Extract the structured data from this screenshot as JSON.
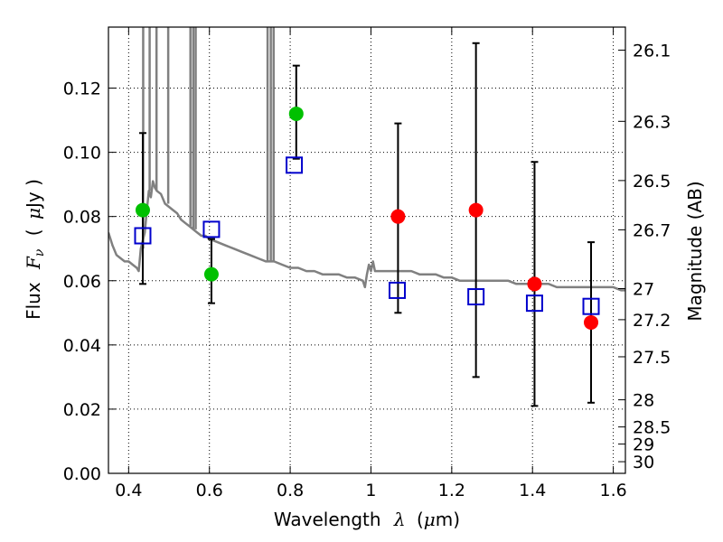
{
  "chart_data": {
    "type": "scatter",
    "xlabel_text": "Wavelength",
    "xlabel_symbol": "λ",
    "xlabel_unit_open": "(",
    "xlabel_unit_mu": "μ",
    "xlabel_unit_rest": "m)",
    "ylabel_text": "Flux",
    "ylabel_symbol": "F",
    "ylabel_symbol_sub": "ν",
    "ylabel_unit_open": "(",
    "ylabel_unit_mu": "μ",
    "ylabel_unit_rest": "Jy )",
    "y2label": "Magnitude (AB)",
    "xlim": [
      0.35,
      1.63
    ],
    "ylim": [
      0.0,
      0.139
    ],
    "x_ticks": [
      0.4,
      0.6,
      0.8,
      1.0,
      1.2,
      1.4,
      1.6
    ],
    "x_tick_labels": [
      "0.4",
      "0.6",
      "0.8",
      "1",
      "1.2",
      "1.4",
      "1.6"
    ],
    "y_ticks": [
      0.0,
      0.02,
      0.04,
      0.06,
      0.08,
      0.1,
      0.12
    ],
    "y_tick_labels": [
      "0.00",
      "0.02",
      "0.04",
      "0.06",
      "0.08",
      "0.10",
      "0.12"
    ],
    "mag_ticks": [
      {
        "label": "26.1",
        "mag": 26.1
      },
      {
        "label": "26.3",
        "mag": 26.3
      },
      {
        "label": "26.5",
        "mag": 26.5
      },
      {
        "label": "26.7",
        "mag": 26.7
      },
      {
        "label": "27",
        "mag": 27.0
      },
      {
        "label": "27.2",
        "mag": 27.2
      },
      {
        "label": "27.5",
        "mag": 27.5
      },
      {
        "label": "28",
        "mag": 28.0
      },
      {
        "label": "28.5",
        "mag": 28.5
      },
      {
        "label": "29",
        "mag": 29.0
      },
      {
        "label": "30",
        "mag": 30.0
      }
    ],
    "grid": true,
    "spectrum_color": "#808080",
    "spectrum": [
      [
        0.35,
        0.075
      ],
      [
        0.36,
        0.071
      ],
      [
        0.37,
        0.068
      ],
      [
        0.38,
        0.067
      ],
      [
        0.39,
        0.066
      ],
      [
        0.4,
        0.066
      ],
      [
        0.41,
        0.065
      ],
      [
        0.42,
        0.064
      ],
      [
        0.425,
        0.063
      ],
      [
        0.43,
        0.07
      ],
      [
        0.44,
        0.075
      ],
      [
        0.445,
        0.082
      ],
      [
        0.45,
        0.088
      ],
      [
        0.455,
        0.086
      ],
      [
        0.46,
        0.091
      ],
      [
        0.465,
        0.089
      ],
      [
        0.47,
        0.088
      ],
      [
        0.48,
        0.087
      ],
      [
        0.49,
        0.084
      ],
      [
        0.5,
        0.083
      ],
      [
        0.51,
        0.082
      ],
      [
        0.52,
        0.081
      ],
      [
        0.53,
        0.079
      ],
      [
        0.54,
        0.078
      ],
      [
        0.55,
        0.077
      ],
      [
        0.56,
        0.076
      ],
      [
        0.57,
        0.075
      ],
      [
        0.58,
        0.074
      ],
      [
        0.59,
        0.074
      ],
      [
        0.6,
        0.073
      ],
      [
        0.62,
        0.072
      ],
      [
        0.64,
        0.071
      ],
      [
        0.66,
        0.07
      ],
      [
        0.68,
        0.069
      ],
      [
        0.7,
        0.068
      ],
      [
        0.72,
        0.067
      ],
      [
        0.74,
        0.066
      ],
      [
        0.76,
        0.066
      ],
      [
        0.78,
        0.065
      ],
      [
        0.8,
        0.064
      ],
      [
        0.82,
        0.064
      ],
      [
        0.84,
        0.063
      ],
      [
        0.86,
        0.063
      ],
      [
        0.88,
        0.062
      ],
      [
        0.9,
        0.062
      ],
      [
        0.92,
        0.062
      ],
      [
        0.94,
        0.061
      ],
      [
        0.96,
        0.061
      ],
      [
        0.98,
        0.06
      ],
      [
        0.985,
        0.058
      ],
      [
        0.99,
        0.062
      ],
      [
        0.995,
        0.065
      ],
      [
        1.0,
        0.063
      ],
      [
        1.005,
        0.066
      ],
      [
        1.01,
        0.063
      ],
      [
        1.02,
        0.063
      ],
      [
        1.04,
        0.063
      ],
      [
        1.06,
        0.063
      ],
      [
        1.08,
        0.063
      ],
      [
        1.1,
        0.063
      ],
      [
        1.12,
        0.062
      ],
      [
        1.14,
        0.062
      ],
      [
        1.16,
        0.062
      ],
      [
        1.18,
        0.061
      ],
      [
        1.2,
        0.061
      ],
      [
        1.22,
        0.06
      ],
      [
        1.24,
        0.06
      ],
      [
        1.26,
        0.06
      ],
      [
        1.28,
        0.06
      ],
      [
        1.3,
        0.06
      ],
      [
        1.32,
        0.06
      ],
      [
        1.34,
        0.06
      ],
      [
        1.36,
        0.059
      ],
      [
        1.38,
        0.059
      ],
      [
        1.4,
        0.059
      ],
      [
        1.42,
        0.059
      ],
      [
        1.44,
        0.059
      ],
      [
        1.46,
        0.058
      ],
      [
        1.48,
        0.058
      ],
      [
        1.5,
        0.058
      ],
      [
        1.52,
        0.058
      ],
      [
        1.54,
        0.058
      ],
      [
        1.56,
        0.058
      ],
      [
        1.58,
        0.058
      ],
      [
        1.6,
        0.058
      ],
      [
        1.62,
        0.057
      ],
      [
        1.63,
        0.057
      ]
    ],
    "emission_lines": [
      {
        "x": 0.436,
        "base": 0.07
      },
      {
        "x": 0.452,
        "base": 0.088
      },
      {
        "x": 0.469,
        "base": 0.088
      },
      {
        "x": 0.498,
        "base": 0.084
      },
      {
        "x": 0.553,
        "base": 0.077
      },
      {
        "x": 0.56,
        "base": 0.076
      },
      {
        "x": 0.566,
        "base": 0.076
      },
      {
        "x": 0.744,
        "base": 0.066
      },
      {
        "x": 0.752,
        "base": 0.066
      },
      {
        "x": 0.759,
        "base": 0.066
      }
    ],
    "series": [
      {
        "marker": "square-open",
        "color": "#0000cc",
        "x": [
          0.435,
          0.605,
          0.81,
          1.065,
          1.26,
          1.405,
          1.545
        ],
        "y": [
          0.074,
          0.076,
          0.096,
          0.057,
          0.055,
          0.053,
          0.052
        ]
      },
      {
        "marker": "circle",
        "color": "#00c000",
        "x": [
          0.435,
          0.605,
          0.815
        ],
        "y": [
          0.082,
          0.062,
          0.112
        ]
      },
      {
        "marker": "circle",
        "color": "#ff0000",
        "x": [
          1.067,
          1.26,
          1.405,
          1.545
        ],
        "y": [
          0.08,
          0.082,
          0.059,
          0.047
        ]
      }
    ],
    "error_bars": [
      {
        "x": 0.435,
        "low": 0.059,
        "high": 0.106
      },
      {
        "x": 0.605,
        "low": 0.053,
        "high": 0.073
      },
      {
        "x": 0.815,
        "low": 0.098,
        "high": 0.127
      },
      {
        "x": 1.067,
        "low": 0.05,
        "high": 0.109
      },
      {
        "x": 1.26,
        "low": 0.03,
        "high": 0.134
      },
      {
        "x": 1.405,
        "low": 0.021,
        "high": 0.097
      },
      {
        "x": 1.545,
        "low": 0.022,
        "high": 0.072
      }
    ]
  }
}
